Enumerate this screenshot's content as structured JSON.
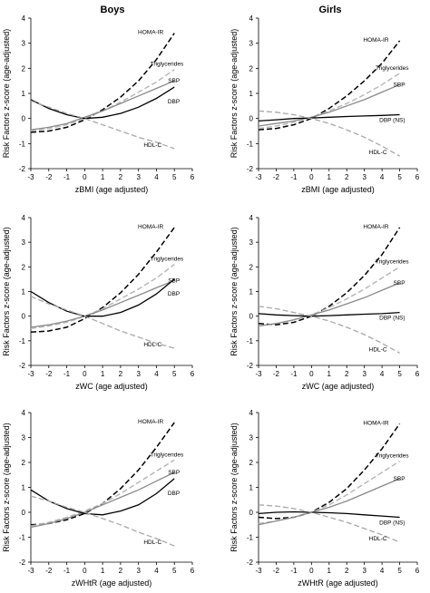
{
  "column_titles": {
    "boys": "Boys",
    "girls": "Girls"
  },
  "colors": {
    "homa": "#000000",
    "trig": "#b5b5b5",
    "sbp": "#8a8a8a",
    "dbp": "#000000",
    "hdl": "#a8a8a8"
  },
  "chart_data": [
    {
      "type": "line",
      "panel": "Boys zBMI",
      "xlabel": "zBMI (age adjusted)",
      "ylabel": "Risk Factors z-score (age-adjusted)",
      "xlim": [
        -3,
        6
      ],
      "ylim": [
        -2,
        4
      ],
      "xticks": [
        -3,
        -2,
        -1,
        0,
        1,
        2,
        3,
        4,
        5,
        6
      ],
      "yticks": [
        -2,
        -1,
        0,
        1,
        2,
        3,
        4
      ],
      "series": [
        {
          "name": "HOMA-IR",
          "style": "black-dash",
          "x": [
            -3,
            -2,
            -1,
            0,
            1,
            2,
            3,
            4,
            5
          ],
          "y": [
            -0.55,
            -0.5,
            -0.35,
            -0.05,
            0.35,
            0.85,
            1.5,
            2.35,
            3.4
          ]
        },
        {
          "name": "Triglycerides",
          "style": "grey-dash",
          "x": [
            -3,
            -2,
            -1,
            0,
            1,
            2,
            3,
            4,
            5
          ],
          "y": [
            -0.5,
            -0.4,
            -0.25,
            0.0,
            0.3,
            0.65,
            1.05,
            1.45,
            1.95
          ]
        },
        {
          "name": "SBP",
          "style": "grey-solid",
          "x": [
            -3,
            -2,
            -1,
            0,
            1,
            2,
            3,
            4,
            5
          ],
          "y": [
            -0.45,
            -0.35,
            -0.2,
            0.05,
            0.3,
            0.6,
            0.9,
            1.2,
            1.5
          ]
        },
        {
          "name": "DBP",
          "style": "black-solid",
          "x": [
            -3,
            -2,
            -1,
            0,
            1,
            2,
            3,
            4,
            5
          ],
          "y": [
            0.75,
            0.4,
            0.15,
            0.0,
            0.05,
            0.2,
            0.45,
            0.8,
            1.25
          ]
        },
        {
          "name": "HDL-C",
          "style": "light-dash",
          "x": [
            -3,
            -2,
            -1,
            0,
            1,
            2,
            3,
            4,
            5
          ],
          "y": [
            0.7,
            0.45,
            0.2,
            0.0,
            -0.25,
            -0.5,
            -0.75,
            -0.95,
            -1.2
          ]
        }
      ]
    },
    {
      "type": "line",
      "panel": "Girls zBMI",
      "xlabel": "zBMI (age adjusted)",
      "ylabel": "Risk Factors z-score (age-adjusted)",
      "xlim": [
        -3,
        6
      ],
      "ylim": [
        -2,
        4
      ],
      "xticks": [
        -3,
        -2,
        -1,
        0,
        1,
        2,
        3,
        4,
        5,
        6
      ],
      "yticks": [
        -2,
        -1,
        0,
        1,
        2,
        3,
        4
      ],
      "series": [
        {
          "name": "HOMA-IR",
          "style": "black-dash",
          "x": [
            -3,
            -2,
            -1,
            0,
            1,
            2,
            3,
            4,
            5
          ],
          "y": [
            -0.45,
            -0.4,
            -0.25,
            0.0,
            0.4,
            0.9,
            1.5,
            2.2,
            3.1
          ]
        },
        {
          "name": "Triglycerides",
          "style": "grey-dash",
          "x": [
            -3,
            -2,
            -1,
            0,
            1,
            2,
            3,
            4,
            5
          ],
          "y": [
            -0.4,
            -0.3,
            -0.15,
            0.05,
            0.3,
            0.6,
            0.95,
            1.35,
            1.8
          ]
        },
        {
          "name": "SBP",
          "style": "grey-solid",
          "x": [
            -3,
            -2,
            -1,
            0,
            1,
            2,
            3,
            4,
            5
          ],
          "y": [
            -0.3,
            -0.2,
            -0.1,
            0.05,
            0.25,
            0.5,
            0.75,
            1.05,
            1.35
          ]
        },
        {
          "name": "DBP (NS)",
          "style": "black-solid",
          "x": [
            -3,
            -2,
            -1,
            0,
            1,
            2,
            3,
            4,
            5
          ],
          "y": [
            -0.1,
            -0.05,
            0.0,
            0.02,
            0.05,
            0.08,
            0.1,
            0.12,
            0.15
          ]
        },
        {
          "name": "HDL-C",
          "style": "light-dash",
          "x": [
            -3,
            -2,
            -1,
            0,
            1,
            2,
            3,
            4,
            5
          ],
          "y": [
            0.3,
            0.25,
            0.15,
            0.0,
            -0.2,
            -0.45,
            -0.75,
            -1.1,
            -1.5
          ]
        }
      ]
    },
    {
      "type": "line",
      "panel": "Boys zWC",
      "xlabel": "zWC (age adjusted)",
      "ylabel": "Risk Factors z-score (age-adjusted)",
      "xlim": [
        -3,
        6
      ],
      "ylim": [
        -2,
        4
      ],
      "xticks": [
        -3,
        -2,
        -1,
        0,
        1,
        2,
        3,
        4,
        5,
        6
      ],
      "yticks": [
        -2,
        -1,
        0,
        1,
        2,
        3,
        4
      ],
      "series": [
        {
          "name": "HOMA-IR",
          "style": "black-dash",
          "x": [
            -3,
            -2,
            -1,
            0,
            1,
            2,
            3,
            4,
            5
          ],
          "y": [
            -0.65,
            -0.6,
            -0.45,
            -0.1,
            0.35,
            0.95,
            1.7,
            2.6,
            3.6
          ]
        },
        {
          "name": "Triglycerides",
          "style": "grey-dash",
          "x": [
            -3,
            -2,
            -1,
            0,
            1,
            2,
            3,
            4,
            5
          ],
          "y": [
            -0.5,
            -0.4,
            -0.25,
            0.0,
            0.3,
            0.7,
            1.1,
            1.55,
            2.1
          ]
        },
        {
          "name": "SBP",
          "style": "grey-solid",
          "x": [
            -3,
            -2,
            -1,
            0,
            1,
            2,
            3,
            4,
            5
          ],
          "y": [
            -0.45,
            -0.35,
            -0.2,
            0.0,
            0.25,
            0.55,
            0.85,
            1.15,
            1.45
          ]
        },
        {
          "name": "DBP",
          "style": "black-solid",
          "x": [
            -3,
            -2,
            -1,
            0,
            1,
            2,
            3,
            4,
            5
          ],
          "y": [
            1.0,
            0.55,
            0.2,
            0.0,
            0.0,
            0.15,
            0.45,
            0.9,
            1.5
          ]
        },
        {
          "name": "HDL-C",
          "style": "light-dash",
          "x": [
            -3,
            -2,
            -1,
            0,
            1,
            2,
            3,
            4,
            5
          ],
          "y": [
            0.8,
            0.5,
            0.25,
            0.0,
            -0.3,
            -0.6,
            -0.85,
            -1.1,
            -1.3
          ]
        }
      ]
    },
    {
      "type": "line",
      "panel": "Girls zWC",
      "xlabel": "zWC (age adjusted)",
      "ylabel": "Risk Factors z-score (age-adjusted)",
      "xlim": [
        -3,
        6
      ],
      "ylim": [
        -2,
        4
      ],
      "xticks": [
        -3,
        -2,
        -1,
        0,
        1,
        2,
        3,
        4,
        5,
        6
      ],
      "yticks": [
        -2,
        -1,
        0,
        1,
        2,
        3,
        4
      ],
      "series": [
        {
          "name": "HOMA-IR",
          "style": "black-dash",
          "x": [
            -3,
            -2,
            -1,
            0,
            1,
            2,
            3,
            4,
            5
          ],
          "y": [
            -0.3,
            -0.35,
            -0.25,
            0.0,
            0.4,
            0.95,
            1.65,
            2.5,
            3.6
          ]
        },
        {
          "name": "Triglycerides",
          "style": "grey-dash",
          "x": [
            -3,
            -2,
            -1,
            0,
            1,
            2,
            3,
            4,
            5
          ],
          "y": [
            -0.4,
            -0.3,
            -0.15,
            0.05,
            0.35,
            0.7,
            1.1,
            1.55,
            2.0
          ]
        },
        {
          "name": "SBP",
          "style": "grey-solid",
          "x": [
            -3,
            -2,
            -1,
            0,
            1,
            2,
            3,
            4,
            5
          ],
          "y": [
            -0.4,
            -0.3,
            -0.15,
            0.05,
            0.25,
            0.5,
            0.75,
            1.05,
            1.35
          ]
        },
        {
          "name": "DBP (NS)",
          "style": "black-solid",
          "x": [
            -3,
            -2,
            -1,
            0,
            1,
            2,
            3,
            4,
            5
          ],
          "y": [
            0.1,
            0.05,
            0.02,
            0.0,
            0.02,
            0.05,
            0.08,
            0.1,
            0.15
          ]
        },
        {
          "name": "HDL-C",
          "style": "light-dash",
          "x": [
            -3,
            -2,
            -1,
            0,
            1,
            2,
            3,
            4,
            5
          ],
          "y": [
            0.4,
            0.3,
            0.15,
            0.0,
            -0.2,
            -0.45,
            -0.75,
            -1.1,
            -1.5
          ]
        }
      ]
    },
    {
      "type": "line",
      "panel": "Boys zWHtR",
      "xlabel": "zWHtR (age adjusted)",
      "ylabel": "Risk Factors z-score (age-adjusted)",
      "xlim": [
        -3,
        6
      ],
      "ylim": [
        -2,
        4
      ],
      "xticks": [
        -3,
        -2,
        -1,
        0,
        1,
        2,
        3,
        4,
        5,
        6
      ],
      "yticks": [
        -2,
        -1,
        0,
        1,
        2,
        3,
        4
      ],
      "series": [
        {
          "name": "HOMA-IR",
          "style": "black-dash",
          "x": [
            -3,
            -2,
            -1,
            0,
            1,
            2,
            3,
            4,
            5
          ],
          "y": [
            -0.5,
            -0.45,
            -0.3,
            -0.05,
            0.35,
            0.95,
            1.7,
            2.6,
            3.6
          ]
        },
        {
          "name": "Triglycerides",
          "style": "grey-dash",
          "x": [
            -3,
            -2,
            -1,
            0,
            1,
            2,
            3,
            4,
            5
          ],
          "y": [
            -0.55,
            -0.4,
            -0.2,
            0.05,
            0.35,
            0.75,
            1.2,
            1.65,
            2.1
          ]
        },
        {
          "name": "SBP",
          "style": "grey-solid",
          "x": [
            -3,
            -2,
            -1,
            0,
            1,
            2,
            3,
            4,
            5
          ],
          "y": [
            -0.6,
            -0.45,
            -0.25,
            0.0,
            0.3,
            0.6,
            0.9,
            1.25,
            1.6
          ]
        },
        {
          "name": "DBP",
          "style": "black-solid",
          "x": [
            -3,
            -2,
            -1,
            0,
            1,
            2,
            3,
            4,
            5
          ],
          "y": [
            0.9,
            0.45,
            0.15,
            -0.05,
            -0.1,
            0.05,
            0.3,
            0.75,
            1.35
          ]
        },
        {
          "name": "HDL-C",
          "style": "light-dash",
          "x": [
            -3,
            -2,
            -1,
            0,
            1,
            2,
            3,
            4,
            5
          ],
          "y": [
            0.65,
            0.45,
            0.2,
            0.0,
            -0.25,
            -0.5,
            -0.8,
            -1.05,
            -1.35
          ]
        }
      ]
    },
    {
      "type": "line",
      "panel": "Girls zWHtR",
      "xlabel": "zWHtR (age adjusted)",
      "ylabel": "Risk Factors z-score (age-adjusted)",
      "xlim": [
        -3,
        6
      ],
      "ylim": [
        -2,
        4
      ],
      "xticks": [
        -3,
        -2,
        -1,
        0,
        1,
        2,
        3,
        4,
        5,
        6
      ],
      "yticks": [
        -2,
        -1,
        0,
        1,
        2,
        3,
        4
      ],
      "series": [
        {
          "name": "HOMA-IR",
          "style": "black-dash",
          "x": [
            -3,
            -2,
            -1,
            0,
            1,
            2,
            3,
            4,
            5
          ],
          "y": [
            -0.2,
            -0.25,
            -0.2,
            0.0,
            0.4,
            0.95,
            1.7,
            2.55,
            3.55
          ]
        },
        {
          "name": "Triglycerides",
          "style": "grey-dash",
          "x": [
            -3,
            -2,
            -1,
            0,
            1,
            2,
            3,
            4,
            5
          ],
          "y": [
            -0.45,
            -0.35,
            -0.2,
            0.0,
            0.3,
            0.7,
            1.15,
            1.6,
            2.05
          ]
        },
        {
          "name": "SBP",
          "style": "grey-solid",
          "x": [
            -3,
            -2,
            -1,
            0,
            1,
            2,
            3,
            4,
            5
          ],
          "y": [
            -0.5,
            -0.35,
            -0.2,
            0.0,
            0.2,
            0.45,
            0.75,
            1.05,
            1.35
          ]
        },
        {
          "name": "DBP (NS)",
          "style": "black-solid",
          "x": [
            -3,
            -2,
            -1,
            0,
            1,
            2,
            3,
            4,
            5
          ],
          "y": [
            -0.05,
            0.0,
            0.02,
            0.0,
            -0.02,
            -0.05,
            -0.1,
            -0.15,
            -0.2
          ]
        },
        {
          "name": "HDL-C",
          "style": "light-dash",
          "x": [
            -3,
            -2,
            -1,
            0,
            1,
            2,
            3,
            4,
            5
          ],
          "y": [
            0.3,
            0.25,
            0.15,
            0.0,
            -0.2,
            -0.4,
            -0.65,
            -0.9,
            -1.2
          ]
        }
      ]
    }
  ]
}
